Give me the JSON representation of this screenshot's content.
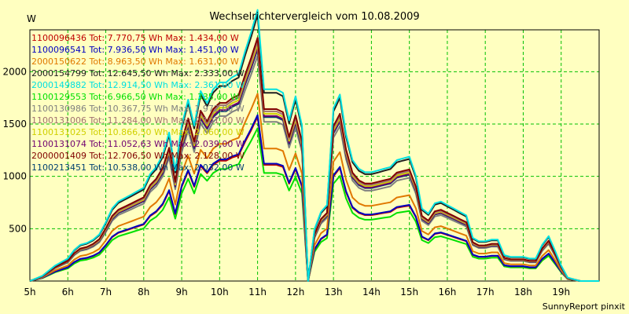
{
  "chart_data": {
    "type": "line",
    "title": "Wechselrichtervergleich vom 10.08.2009",
    "ylabel": "W",
    "footer": "SunnyReport pinxit",
    "xlim": [
      5,
      20
    ],
    "ylim": [
      0,
      2400
    ],
    "x_ticks": [
      "5h",
      "6h",
      "7h",
      "8h",
      "9h",
      "10h",
      "11h",
      "12h",
      "13h",
      "14h",
      "15h",
      "16h",
      "17h",
      "18h",
      "19h"
    ],
    "y_ticks": [
      500,
      1000,
      1500,
      2000
    ],
    "grid": true,
    "legend_position": "top-left",
    "x": [
      5.0,
      5.33,
      5.67,
      6.0,
      6.17,
      6.33,
      6.5,
      6.67,
      6.83,
      7.0,
      7.17,
      7.33,
      7.5,
      7.67,
      7.83,
      8.0,
      8.17,
      8.33,
      8.5,
      8.67,
      8.83,
      9.0,
      9.17,
      9.33,
      9.5,
      9.67,
      9.83,
      10.0,
      10.17,
      10.33,
      10.5,
      10.67,
      10.83,
      11.0,
      11.17,
      11.33,
      11.5,
      11.67,
      11.83,
      12.0,
      12.17,
      12.33,
      12.5,
      12.67,
      12.83,
      13.0,
      13.17,
      13.33,
      13.5,
      13.67,
      13.83,
      14.0,
      14.17,
      14.33,
      14.5,
      14.67,
      14.83,
      15.0,
      15.17,
      15.33,
      15.5,
      15.67,
      15.83,
      16.0,
      16.17,
      16.33,
      16.5,
      16.67,
      16.83,
      17.0,
      17.17,
      17.33,
      17.5,
      17.67,
      17.83,
      18.0,
      18.17,
      18.33,
      18.5,
      18.67,
      18.83,
      19.0,
      19.17,
      19.33,
      19.5,
      19.67,
      19.83,
      20.0
    ],
    "base_shape": [
      0,
      30,
      90,
      130,
      180,
      210,
      220,
      240,
      270,
      340,
      420,
      460,
      480,
      500,
      520,
      540,
      620,
      660,
      730,
      860,
      640,
      900,
      1050,
      900,
      1100,
      1030,
      1110,
      1150,
      1150,
      1180,
      1200,
      1330,
      1440,
      1570,
      1110,
      1110,
      1110,
      1090,
      930,
      1070,
      900,
      0,
      300,
      400,
      440,
      1000,
      1080,
      850,
      700,
      650,
      630,
      630,
      640,
      650,
      660,
      700,
      710,
      720,
      610,
      420,
      390,
      450,
      460,
      440,
      420,
      400,
      380,
      250,
      230,
      230,
      240,
      240,
      150,
      140,
      140,
      140,
      130,
      130,
      210,
      260,
      180,
      90,
      20,
      10,
      0,
      0,
      0,
      0
    ],
    "series": [
      {
        "name": "1100096436 Tot: 7.770,75 Wh Max: 1.434,00 W",
        "color": "#c00000",
        "scale": 1.0
      },
      {
        "name": "1100096541 Tot: 7.936,50 Wh Max: 1.451,00 W",
        "color": "#0000c0",
        "scale": 1.01
      },
      {
        "name": "2000150622 Tot: 8.963,50 Wh Max: 1.631,00 W",
        "color": "#e07800",
        "scale": 1.14
      },
      {
        "name": "2000154799 Tot: 12.645,50 Wh Max: 2.333,00 W",
        "color": "#202020",
        "scale": 1.62
      },
      {
        "name": "2000149882 Tot: 12.914,50 Wh Max: 2.361,00 W",
        "color": "#00e0e0",
        "scale": 1.65
      },
      {
        "name": "1100129553 Tot: 6.966,50 Wh Max: 1.335,00 W",
        "color": "#00e000",
        "scale": 0.93
      },
      {
        "name": "1100130986 Tot: 10.367,75 Wh Max: 1.972,00 W",
        "color": "#808080",
        "scale": 1.37
      },
      {
        "name": "1100131006 Tot: 11.284,00 Wh Max: 2.101,00 W",
        "color": "#a07070",
        "scale": 1.46
      },
      {
        "name": "1100131025 Tot: 10.866,50 Wh Max: 2.060,00 W",
        "color": "#d0d000",
        "scale": 1.44
      },
      {
        "name": "1100131074 Tot: 11.052,63 Wh Max: 2.039,00 W",
        "color": "#700070",
        "scale": 1.42
      },
      {
        "name": "2000001409 Tot: 12.706,50 Wh Max: 2.128,00 W",
        "color": "#800000",
        "scale": 1.48
      },
      {
        "name": "1100213451 Tot: 10.538,00 Wh Max: 2.032,00 W",
        "color": "#004070",
        "scale": 1.41
      }
    ]
  }
}
